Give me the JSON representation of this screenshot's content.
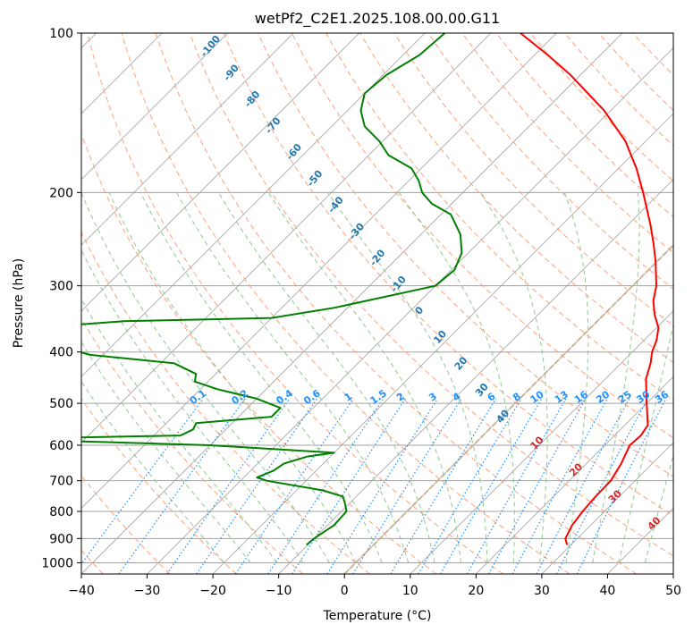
{
  "chart_data": {
    "type": "line",
    "title": "wetPf2_C2E1.2025.108.00.00.G11",
    "xlabel": "Temperature (°C)",
    "ylabel": "Pressure (hPa)",
    "xlim": [
      -40,
      50
    ],
    "ylim": [
      1050,
      100
    ],
    "y_scale": "log",
    "grid": true,
    "x_ticks": [
      -40,
      -30,
      -20,
      -10,
      0,
      10,
      20,
      30,
      40,
      50
    ],
    "y_ticks": [
      100,
      200,
      300,
      400,
      500,
      600,
      700,
      800,
      900,
      1000
    ],
    "colors": {
      "temperature": "#ff0000",
      "dewpoint": "#008000",
      "isotherm": "#a0a0a0",
      "dry_adiabat": "#ffa07a",
      "moist_adiabat": "#90c890",
      "mixing_ratio": "#1e90ff",
      "freezing_isotherm": "#d2b48c",
      "dry_label": "#1f77b4",
      "moist_label": "#d62728"
    },
    "series": [
      {
        "p": [
          925,
          900,
          850,
          800,
          750,
          700,
          650,
          600,
          575,
          550,
          500,
          450,
          420,
          400,
          380,
          360,
          340,
          320,
          300,
          270,
          250,
          230,
          210,
          200,
          180,
          160,
          140,
          120,
          110,
          100
        ],
        "t": [
          29.4,
          28.2,
          27.2,
          26.7,
          26.4,
          26.3,
          25.3,
          23.8,
          24.0,
          23.5,
          20.0,
          16.2,
          14.5,
          13.0,
          11.9,
          10.3,
          7.7,
          5.4,
          3.6,
          -0.2,
          -3.2,
          -6.6,
          -10.5,
          -12.6,
          -17.3,
          -23.1,
          -31.0,
          -41.5,
          -48.0,
          -55.5
        ]
      },
      {
        "p": [
          925,
          900,
          850,
          800,
          770,
          750,
          730,
          700,
          690,
          670,
          650,
          630,
          620,
          600,
          590,
          585,
          575,
          560,
          545,
          530,
          510,
          490,
          470,
          455,
          440,
          420,
          405,
          400,
          390,
          370,
          360,
          355,
          350,
          345,
          330,
          300,
          280,
          260,
          240,
          220,
          210,
          200,
          190,
          180,
          170,
          160,
          150,
          140,
          130,
          120,
          110,
          100
        ],
        "t": [
          -10.2,
          -10.0,
          -9.0,
          -9.2,
          -10.8,
          -12.0,
          -16.0,
          -26.0,
          -28.0,
          -26.5,
          -26.0,
          -23.5,
          -20.0,
          -40.0,
          -60.0,
          -77.0,
          -46.0,
          -45.0,
          -45.5,
          -35.0,
          -35.0,
          -40.0,
          -47.5,
          -52.0,
          -53.0,
          -58.0,
          -72.0,
          -74.0,
          -76.0,
          -78.0,
          -79.0,
          -78.5,
          -72.0,
          -50.0,
          -42.0,
          -30.0,
          -29.5,
          -31.0,
          -34.0,
          -38.5,
          -43.0,
          -46.2,
          -48.5,
          -51.5,
          -57.0,
          -60.5,
          -65.0,
          -68.0,
          -70.0,
          -69.5,
          -67.5,
          -67.0
        ]
      }
    ],
    "mixing_ratio_labels": [
      "0.1",
      "0.2",
      "0.4",
      "0.6",
      "1",
      "1.5",
      "2",
      "3",
      "4",
      "6",
      "8",
      "10",
      "13",
      "16",
      "20",
      "25",
      "30",
      "36"
    ],
    "dry_adiabat_labels": [
      "-100",
      "-90",
      "-80",
      "-70",
      "-60",
      "-50",
      "-40",
      "-30",
      "-20",
      "-10",
      "0",
      "10",
      "20",
      "30",
      "40"
    ],
    "moist_adiabat_labels": [
      "10",
      "20",
      "30",
      "40"
    ]
  }
}
